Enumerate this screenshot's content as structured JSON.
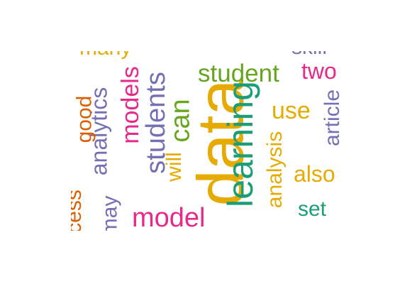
{
  "colors": {
    "teal": "#1b9e77",
    "orange": "#d95f02",
    "purple": "#7570b3",
    "magenta": "#e7298a",
    "green": "#66a61e",
    "gold": "#e6ab02"
  },
  "words": [
    {
      "text": "data",
      "color": "#e6ab02"
    },
    {
      "text": "learning",
      "color": "#1b9e77"
    },
    {
      "text": "students",
      "color": "#7570b3"
    },
    {
      "text": "student",
      "color": "#66a61e"
    },
    {
      "text": "model",
      "color": "#e7298a"
    },
    {
      "text": "models",
      "color": "#e7298a"
    },
    {
      "text": "analytics",
      "color": "#7570b3"
    },
    {
      "text": "analysis",
      "color": "#e6ab02"
    },
    {
      "text": "can",
      "color": "#66a61e"
    },
    {
      "text": "will",
      "color": "#e6ab02"
    },
    {
      "text": "good",
      "color": "#d95f02"
    },
    {
      "text": "use",
      "color": "#e6ab02"
    },
    {
      "text": "two",
      "color": "#e7298a"
    },
    {
      "text": "article",
      "color": "#7570b3"
    },
    {
      "text": "also",
      "color": "#e6ab02"
    },
    {
      "text": "set",
      "color": "#1b9e77"
    },
    {
      "text": "cess",
      "color": "#d95f02"
    },
    {
      "text": "may",
      "color": "#7570b3"
    },
    {
      "text": "many",
      "color": "#e6ab02"
    },
    {
      "text": "skill",
      "color": "#7570b3"
    }
  ]
}
